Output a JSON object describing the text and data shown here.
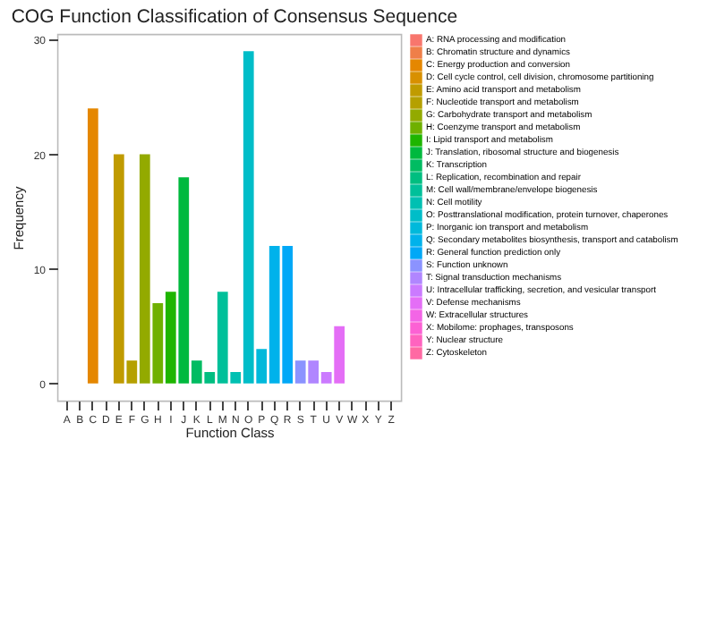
{
  "chart_data": {
    "type": "bar",
    "title": "COG Function Classification of Consensus Sequence",
    "xlabel": "Function Class",
    "ylabel": "Frequency",
    "categories": [
      "A",
      "B",
      "C",
      "D",
      "E",
      "F",
      "G",
      "H",
      "I",
      "J",
      "K",
      "L",
      "M",
      "N",
      "O",
      "P",
      "Q",
      "R",
      "S",
      "T",
      "U",
      "V",
      "W",
      "X",
      "Y",
      "Z"
    ],
    "ylim": [
      -1.5,
      30.5
    ],
    "yticks": [
      0,
      10,
      20,
      30
    ],
    "legend": "right",
    "series": [
      {
        "name": "A: RNA processing and modification",
        "color": "#f8766d",
        "values": [
          0,
          null,
          null,
          null,
          null,
          null,
          null,
          null,
          null,
          null,
          null,
          null,
          null,
          null,
          null,
          null,
          null,
          null,
          null,
          null,
          null,
          null,
          null,
          null,
          null,
          null
        ]
      },
      {
        "name": "B: Chromatin structure and dynamics",
        "color": "#ef7f49",
        "values": [
          null,
          0,
          null,
          null,
          null,
          null,
          null,
          null,
          null,
          null,
          null,
          null,
          null,
          null,
          null,
          null,
          null,
          null,
          null,
          null,
          null,
          null,
          null,
          null,
          null,
          null
        ]
      },
      {
        "name": "C: Energy production and conversion",
        "color": "#e58700",
        "values": [
          null,
          null,
          24,
          null,
          null,
          null,
          null,
          null,
          null,
          null,
          null,
          null,
          null,
          null,
          null,
          null,
          null,
          null,
          null,
          null,
          null,
          null,
          null,
          null,
          null,
          null
        ]
      },
      {
        "name": "D: Cell cycle control, cell division, chromosome partitioning",
        "color": "#d89000",
        "values": [
          null,
          null,
          null,
          0,
          null,
          null,
          null,
          null,
          null,
          null,
          null,
          null,
          null,
          null,
          null,
          null,
          null,
          null,
          null,
          null,
          null,
          null,
          null,
          null,
          null,
          null
        ]
      },
      {
        "name": "E: Amino acid transport and metabolism",
        "color": "#c09b00",
        "values": [
          null,
          null,
          null,
          null,
          20,
          null,
          null,
          null,
          null,
          null,
          null,
          null,
          null,
          null,
          null,
          null,
          null,
          null,
          null,
          null,
          null,
          null,
          null,
          null,
          null,
          null
        ]
      },
      {
        "name": "F: Nucleotide transport and metabolism",
        "color": "#b5a000",
        "values": [
          null,
          null,
          null,
          null,
          null,
          2,
          null,
          null,
          null,
          null,
          null,
          null,
          null,
          null,
          null,
          null,
          null,
          null,
          null,
          null,
          null,
          null,
          null,
          null,
          null,
          null
        ]
      },
      {
        "name": "G: Carbohydrate transport and metabolism",
        "color": "#93aa00",
        "values": [
          null,
          null,
          null,
          null,
          null,
          null,
          20,
          null,
          null,
          null,
          null,
          null,
          null,
          null,
          null,
          null,
          null,
          null,
          null,
          null,
          null,
          null,
          null,
          null,
          null,
          null
        ]
      },
      {
        "name": "H: Coenzyme transport and metabolism",
        "color": "#6fb000",
        "values": [
          null,
          null,
          null,
          null,
          null,
          null,
          null,
          7,
          null,
          null,
          null,
          null,
          null,
          null,
          null,
          null,
          null,
          null,
          null,
          null,
          null,
          null,
          null,
          null,
          null,
          null
        ]
      },
      {
        "name": "I: Lipid transport and metabolism",
        "color": "#1eb500",
        "values": [
          null,
          null,
          null,
          null,
          null,
          null,
          null,
          null,
          8,
          null,
          null,
          null,
          null,
          null,
          null,
          null,
          null,
          null,
          null,
          null,
          null,
          null,
          null,
          null,
          null,
          null
        ]
      },
      {
        "name": "J: Translation, ribosomal structure and biogenesis",
        "color": "#00b93e",
        "values": [
          null,
          null,
          null,
          null,
          null,
          null,
          null,
          null,
          null,
          18,
          null,
          null,
          null,
          null,
          null,
          null,
          null,
          null,
          null,
          null,
          null,
          null,
          null,
          null,
          null,
          null
        ]
      },
      {
        "name": "K: Transcription",
        "color": "#00bc62",
        "values": [
          null,
          null,
          null,
          null,
          null,
          null,
          null,
          null,
          null,
          null,
          2,
          null,
          null,
          null,
          null,
          null,
          null,
          null,
          null,
          null,
          null,
          null,
          null,
          null,
          null,
          null
        ]
      },
      {
        "name": "L: Replication, recombination and repair",
        "color": "#00be80",
        "values": [
          null,
          null,
          null,
          null,
          null,
          null,
          null,
          null,
          null,
          null,
          null,
          1,
          null,
          null,
          null,
          null,
          null,
          null,
          null,
          null,
          null,
          null,
          null,
          null,
          null,
          null
        ]
      },
      {
        "name": "M: Cell wall/membrane/envelope biogenesis",
        "color": "#00c09a",
        "values": [
          null,
          null,
          null,
          null,
          null,
          null,
          null,
          null,
          null,
          null,
          null,
          null,
          8,
          null,
          null,
          null,
          null,
          null,
          null,
          null,
          null,
          null,
          null,
          null,
          null,
          null
        ]
      },
      {
        "name": "N: Cell motility",
        "color": "#00c0b2",
        "values": [
          null,
          null,
          null,
          null,
          null,
          null,
          null,
          null,
          null,
          null,
          null,
          null,
          null,
          1,
          null,
          null,
          null,
          null,
          null,
          null,
          null,
          null,
          null,
          null,
          null,
          null
        ]
      },
      {
        "name": "O: Posttranslational modification, protein turnover, chaperones",
        "color": "#00bdc8",
        "values": [
          null,
          null,
          null,
          null,
          null,
          null,
          null,
          null,
          null,
          null,
          null,
          null,
          null,
          null,
          29,
          null,
          null,
          null,
          null,
          null,
          null,
          null,
          null,
          null,
          null,
          null
        ]
      },
      {
        "name": "P: Inorganic ion transport and metabolism",
        "color": "#00b9db",
        "values": [
          null,
          null,
          null,
          null,
          null,
          null,
          null,
          null,
          null,
          null,
          null,
          null,
          null,
          null,
          null,
          3,
          null,
          null,
          null,
          null,
          null,
          null,
          null,
          null,
          null,
          null
        ]
      },
      {
        "name": "Q: Secondary metabolites biosynthesis, transport and catabolism",
        "color": "#00b2eb",
        "values": [
          null,
          null,
          null,
          null,
          null,
          null,
          null,
          null,
          null,
          null,
          null,
          null,
          null,
          null,
          null,
          null,
          12,
          null,
          null,
          null,
          null,
          null,
          null,
          null,
          null,
          null
        ]
      },
      {
        "name": "R: General function prediction only",
        "color": "#00a8f7",
        "values": [
          null,
          null,
          null,
          null,
          null,
          null,
          null,
          null,
          null,
          null,
          null,
          null,
          null,
          null,
          null,
          null,
          null,
          12,
          null,
          null,
          null,
          null,
          null,
          null,
          null,
          null
        ]
      },
      {
        "name": "S: Function unknown",
        "color": "#8b93ff",
        "values": [
          null,
          null,
          null,
          null,
          null,
          null,
          null,
          null,
          null,
          null,
          null,
          null,
          null,
          null,
          null,
          null,
          null,
          null,
          2,
          null,
          null,
          null,
          null,
          null,
          null,
          null
        ]
      },
      {
        "name": "T: Signal transduction mechanisms",
        "color": "#b086ff",
        "values": [
          null,
          null,
          null,
          null,
          null,
          null,
          null,
          null,
          null,
          null,
          null,
          null,
          null,
          null,
          null,
          null,
          null,
          null,
          null,
          2,
          null,
          null,
          null,
          null,
          null,
          null
        ]
      },
      {
        "name": "U: Intracellular trafficking, secretion, and vesicular transport",
        "color": "#cb7aff",
        "values": [
          null,
          null,
          null,
          null,
          null,
          null,
          null,
          null,
          null,
          null,
          null,
          null,
          null,
          null,
          null,
          null,
          null,
          null,
          null,
          null,
          1,
          null,
          null,
          null,
          null,
          null
        ]
      },
      {
        "name": "V: Defense mechanisms",
        "color": "#e46ef6",
        "values": [
          null,
          null,
          null,
          null,
          null,
          null,
          null,
          null,
          null,
          null,
          null,
          null,
          null,
          null,
          null,
          null,
          null,
          null,
          null,
          null,
          null,
          5,
          null,
          null,
          null,
          null
        ]
      },
      {
        "name": "W: Extracellular structures",
        "color": "#f365e6",
        "values": [
          null,
          null,
          null,
          null,
          null,
          null,
          null,
          null,
          null,
          null,
          null,
          null,
          null,
          null,
          null,
          null,
          null,
          null,
          null,
          null,
          null,
          null,
          0,
          null,
          null,
          null
        ]
      },
      {
        "name": "X: Mobilome: prophages, transposons",
        "color": "#fc61d4",
        "values": [
          null,
          null,
          null,
          null,
          null,
          null,
          null,
          null,
          null,
          null,
          null,
          null,
          null,
          null,
          null,
          null,
          null,
          null,
          null,
          null,
          null,
          null,
          null,
          0,
          null,
          null
        ]
      },
      {
        "name": "Y: Nuclear structure",
        "color": "#ff63bf",
        "values": [
          null,
          null,
          null,
          null,
          null,
          null,
          null,
          null,
          null,
          null,
          null,
          null,
          null,
          null,
          null,
          null,
          null,
          null,
          null,
          null,
          null,
          null,
          null,
          null,
          0,
          null
        ]
      },
      {
        "name": "Z: Cytoskeleton",
        "color": "#ff69a3",
        "values": [
          null,
          null,
          null,
          null,
          null,
          null,
          null,
          null,
          null,
          null,
          null,
          null,
          null,
          null,
          null,
          null,
          null,
          null,
          null,
          null,
          null,
          null,
          null,
          null,
          null,
          0
        ]
      }
    ]
  }
}
